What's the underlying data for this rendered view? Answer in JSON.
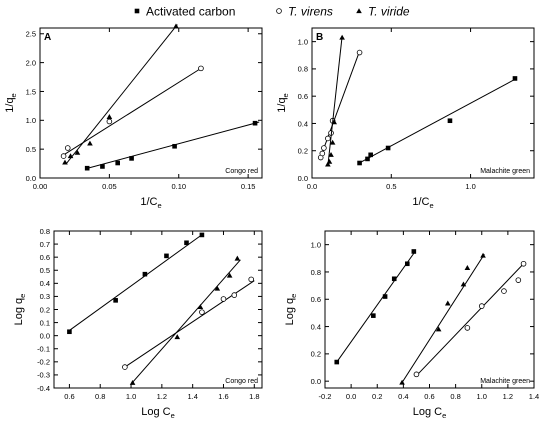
{
  "legend": {
    "placement": "top-center",
    "items": [
      {
        "label": "Activated carbon",
        "italic": false,
        "marker": "square-filled"
      },
      {
        "label": "T. virens",
        "italic": true,
        "marker": "circle-open"
      },
      {
        "label": "T. viride",
        "italic": true,
        "marker": "triangle-filled"
      }
    ]
  },
  "chart_data": [
    {
      "type": "scatter",
      "panel_label": "A",
      "annotation": "Congo red",
      "xlabel": "1/C",
      "xlabel_sub": "e",
      "ylabel": "1/q",
      "ylabel_sub": "e",
      "xlim": [
        0.0,
        0.16
      ],
      "ylim": [
        0.0,
        2.6
      ],
      "xticks": [
        0.0,
        0.05,
        0.1,
        0.15
      ],
      "xtick_labels": [
        "0.00",
        "0.05",
        "0.10",
        "0.15"
      ],
      "yticks": [
        0.0,
        0.5,
        1.0,
        1.5,
        2.0,
        2.5
      ],
      "ytick_labels": [
        "0.0",
        "0.5",
        "1.0",
        "1.5",
        "2.0",
        "2.5"
      ],
      "series": [
        {
          "marker": "square-filled",
          "x": [
            0.034,
            0.045,
            0.056,
            0.066,
            0.097,
            0.155
          ],
          "y": [
            0.17,
            0.2,
            0.26,
            0.34,
            0.55,
            0.95
          ],
          "fit": {
            "x": [
              0.033,
              0.158
            ],
            "y": [
              0.16,
              0.97
            ]
          }
        },
        {
          "marker": "circle-open",
          "x": [
            0.017,
            0.02,
            0.05,
            0.116
          ],
          "y": [
            0.38,
            0.52,
            0.98,
            1.9
          ],
          "fit": {
            "x": [
              0.017,
              0.116
            ],
            "y": [
              0.4,
              1.9
            ]
          }
        },
        {
          "marker": "triangle-filled",
          "x": [
            0.018,
            0.022,
            0.027,
            0.036,
            0.05,
            0.098
          ],
          "y": [
            0.27,
            0.38,
            0.44,
            0.6,
            1.06,
            2.63
          ],
          "fit": {
            "x": [
              0.019,
              0.099
            ],
            "y": [
              0.25,
              2.66
            ]
          }
        }
      ]
    },
    {
      "type": "scatter",
      "panel_label": "B",
      "annotation": "Malachite green",
      "xlabel": "1/C",
      "xlabel_sub": "e",
      "ylabel": "1/q",
      "ylabel_sub": "e",
      "xlim": [
        0.0,
        1.4
      ],
      "ylim": [
        0.0,
        1.1
      ],
      "xticks": [
        0.0,
        0.5,
        1.0
      ],
      "xtick_labels": [
        "0.0",
        "0.5",
        "1.0"
      ],
      "yticks": [
        0.0,
        0.2,
        0.4,
        0.6,
        0.8,
        1.0
      ],
      "ytick_labels": [
        "0.0",
        "0.2",
        "0.4",
        "0.6",
        "0.8",
        "1.0"
      ],
      "series": [
        {
          "marker": "square-filled",
          "x": [
            0.3,
            0.35,
            0.37,
            0.48,
            0.87,
            1.28
          ],
          "y": [
            0.11,
            0.14,
            0.17,
            0.22,
            0.42,
            0.73
          ],
          "fit": {
            "x": [
              0.29,
              1.29
            ],
            "y": [
              0.105,
              0.73
            ]
          }
        },
        {
          "marker": "circle-open",
          "x": [
            0.055,
            0.065,
            0.075,
            0.1,
            0.12,
            0.13,
            0.3
          ],
          "y": [
            0.15,
            0.18,
            0.22,
            0.29,
            0.33,
            0.42,
            0.92
          ],
          "fit": {
            "x": [
              0.05,
              0.3
            ],
            "y": [
              0.14,
              0.93
            ]
          }
        },
        {
          "marker": "triangle-filled",
          "x": [
            0.1,
            0.11,
            0.12,
            0.13,
            0.14,
            0.19
          ],
          "y": [
            0.1,
            0.12,
            0.17,
            0.26,
            0.41,
            1.03
          ],
          "fit": {
            "x": [
              0.1,
              0.19
            ],
            "y": [
              0.09,
              1.04
            ]
          }
        }
      ]
    },
    {
      "type": "scatter",
      "panel_label": "",
      "annotation": "Congo red",
      "xlabel": "Log C",
      "xlabel_sub": "e",
      "ylabel": "Log q",
      "ylabel_sub": "e",
      "xlim": [
        0.5,
        1.85
      ],
      "ylim": [
        -0.4,
        0.8
      ],
      "xticks": [
        0.6,
        0.8,
        1.0,
        1.2,
        1.4,
        1.6,
        1.8
      ],
      "xtick_labels": [
        "0.6",
        "0.8",
        "1.0",
        "1.2",
        "1.4",
        "1.6",
        "1.8"
      ],
      "yticks": [
        -0.4,
        -0.3,
        -0.2,
        -0.1,
        0.0,
        0.1,
        0.2,
        0.3,
        0.4,
        0.5,
        0.6,
        0.7,
        0.8
      ],
      "ytick_labels": [
        "-0.4",
        "-0.3",
        "-0.2",
        "-0.1",
        "0.0",
        "0.1",
        "0.2",
        "0.3",
        "0.4",
        "0.5",
        "0.6",
        "0.7",
        "0.8"
      ],
      "series": [
        {
          "marker": "square-filled",
          "x": [
            0.6,
            0.9,
            1.09,
            1.23,
            1.36,
            1.46
          ],
          "y": [
            0.03,
            0.27,
            0.47,
            0.61,
            0.71,
            0.77
          ],
          "fit": {
            "x": [
              0.6,
              1.47
            ],
            "y": [
              0.04,
              0.78
            ]
          }
        },
        {
          "marker": "circle-open",
          "x": [
            0.96,
            1.46,
            1.6,
            1.67,
            1.78
          ],
          "y": [
            -0.24,
            0.18,
            0.28,
            0.31,
            0.43
          ],
          "fit": {
            "x": [
              0.96,
              1.8
            ],
            "y": [
              -0.24,
              0.42
            ]
          }
        },
        {
          "marker": "triangle-filled",
          "x": [
            1.01,
            1.3,
            1.45,
            1.56,
            1.64,
            1.69
          ],
          "y": [
            -0.36,
            -0.01,
            0.22,
            0.36,
            0.46,
            0.59
          ],
          "fit": {
            "x": [
              1.0,
              1.71
            ],
            "y": [
              -0.37,
              0.58
            ]
          }
        }
      ]
    },
    {
      "type": "scatter",
      "panel_label": "",
      "annotation": "Malachite green",
      "xlabel": "Log C",
      "xlabel_sub": "e",
      "ylabel": "Log q",
      "ylabel_sub": "e",
      "xlim": [
        -0.2,
        1.4
      ],
      "ylim": [
        -0.05,
        1.1
      ],
      "xticks": [
        -0.2,
        0.0,
        0.2,
        0.4,
        0.6,
        0.8,
        1.0,
        1.2,
        1.4
      ],
      "xtick_labels": [
        "-0.2",
        "0.0",
        "0.2",
        "0.4",
        "0.6",
        "0.8",
        "1.0",
        "1.2",
        "1.4"
      ],
      "yticks": [
        0.0,
        0.2,
        0.4,
        0.6,
        0.8,
        1.0
      ],
      "ytick_labels": [
        "0.0",
        "0.2",
        "0.4",
        "0.6",
        "0.8",
        "1.0"
      ],
      "series": [
        {
          "marker": "square-filled",
          "x": [
            -0.11,
            0.17,
            0.26,
            0.33,
            0.43,
            0.48
          ],
          "y": [
            0.14,
            0.48,
            0.62,
            0.75,
            0.86,
            0.95
          ],
          "fit": {
            "x": [
              -0.11,
              0.49
            ],
            "y": [
              0.14,
              0.95
            ]
          }
        },
        {
          "marker": "circle-open",
          "x": [
            0.5,
            0.89,
            1.0,
            1.17,
            1.28,
            1.32
          ],
          "y": [
            0.05,
            0.39,
            0.55,
            0.66,
            0.74,
            0.86
          ],
          "fit": {
            "x": [
              0.5,
              1.32
            ],
            "y": [
              0.04,
              0.86
            ]
          }
        },
        {
          "marker": "triangle-filled",
          "x": [
            0.39,
            0.67,
            0.74,
            0.86,
            0.89,
            1.01
          ],
          "y": [
            -0.01,
            0.38,
            0.57,
            0.71,
            0.83,
            0.92
          ],
          "fit": {
            "x": [
              0.39,
              1.02
            ],
            "y": [
              -0.01,
              0.93
            ]
          }
        }
      ]
    }
  ]
}
